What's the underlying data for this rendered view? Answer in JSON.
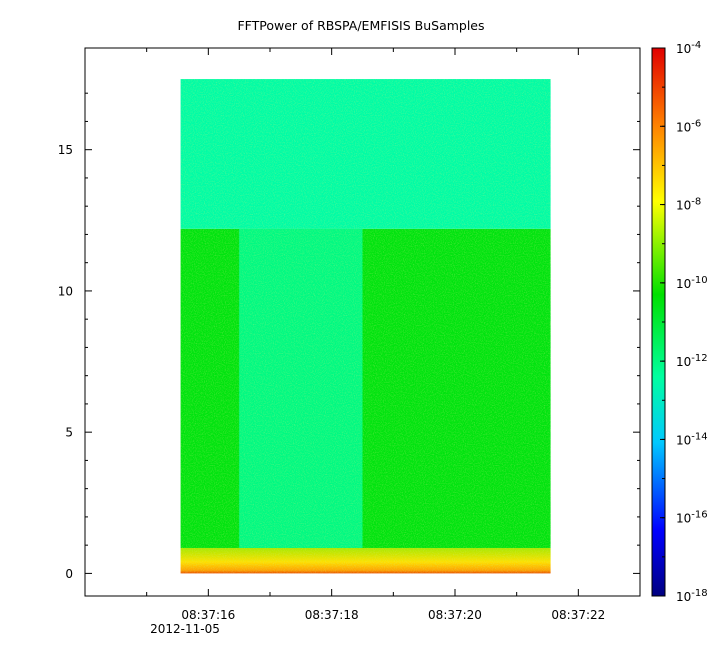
{
  "chart_data": {
    "type": "heatmap",
    "title": "FFTPower of RBSPA/EMFISIS  BuSamples",
    "x_ticks": [
      "08:37:16",
      "08:37:18",
      "08:37:20",
      "08:37:22"
    ],
    "x_tick_values": [
      16,
      18,
      20,
      22
    ],
    "x_minor_ticks": [
      15,
      17,
      19,
      21
    ],
    "x_date_label": "2012-11-05",
    "xlim": [
      14.0,
      23.0
    ],
    "y_ticks": [
      "0",
      "5",
      "10",
      "15"
    ],
    "y_tick_values": [
      0,
      5,
      10,
      15
    ],
    "ylim": [
      -0.8,
      18.6
    ],
    "colorbar": {
      "scale": "log",
      "tick_mantissa": "10",
      "tick_exponents": [
        "-18",
        "-16",
        "-14",
        "-12",
        "-10",
        "-8",
        "-6",
        "-4"
      ],
      "range": [
        1e-18,
        0.0001
      ],
      "colors": [
        "#000080",
        "#0000ff",
        "#00c8ff",
        "#00ffa0",
        "#00e000",
        "#ffff00",
        "#ff8000",
        "#e00000"
      ]
    },
    "spectrogram": {
      "time_range": [
        15.55,
        21.55
      ],
      "freq_range": [
        0,
        17.5
      ],
      "regions": [
        {
          "band": "low",
          "freq": [
            0,
            0.9
          ],
          "log10_power": -8
        },
        {
          "band": "mid",
          "freq": [
            0.9,
            12.2
          ],
          "log10_power": -10.5
        },
        {
          "band": "mid-quiet",
          "time": [
            16.5,
            18.5
          ],
          "freq": [
            0.9,
            12.2
          ],
          "log10_power": -12
        },
        {
          "band": "high",
          "freq": [
            12.2,
            17.5
          ],
          "log10_power": -12.5
        }
      ]
    }
  }
}
